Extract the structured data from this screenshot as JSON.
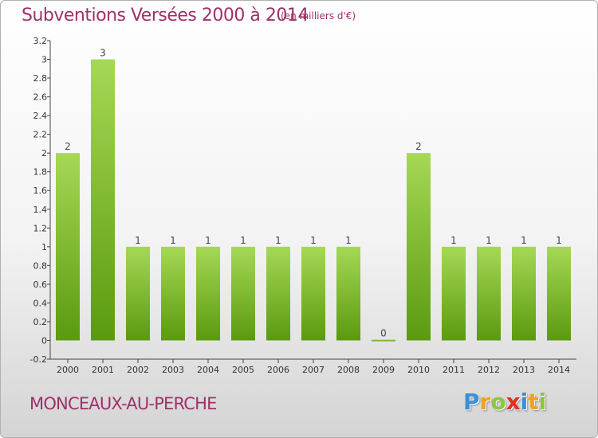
{
  "title": "Subventions Versées 2000 à 2014",
  "subtitle": "(en milliers d'€)",
  "place": "MONCEAUX-AU-PERCHE",
  "logo": {
    "letters": [
      "P",
      "r",
      "o",
      "x",
      "i",
      "t",
      "i"
    ],
    "colors": [
      "#3a8fd8",
      "#f0a020",
      "#8cc63f",
      "#e03020",
      "#3a8fd8",
      "#f0a020",
      "#8cc63f"
    ]
  },
  "chart_data": {
    "type": "bar",
    "categories": [
      "2000",
      "2001",
      "2002",
      "2003",
      "2004",
      "2005",
      "2006",
      "2007",
      "2008",
      "2009",
      "2010",
      "2011",
      "2012",
      "2013",
      "2014"
    ],
    "values": [
      2,
      3,
      1,
      1,
      1,
      1,
      1,
      1,
      1,
      0,
      2,
      1,
      1,
      1,
      1
    ],
    "data_labels": [
      "2",
      "3",
      "1",
      "1",
      "1",
      "1",
      "1",
      "1",
      "1",
      "0",
      "2",
      "1",
      "1",
      "1",
      "1"
    ],
    "ylim": [
      -0.2,
      3.2
    ],
    "yticks": [
      -0.2,
      0,
      0.2,
      0.4,
      0.6,
      0.8,
      1,
      1.2,
      1.4,
      1.6,
      1.8,
      2,
      2.2,
      2.4,
      2.6,
      2.8,
      3,
      3.2
    ],
    "ytick_labels": [
      "-0.2",
      "0",
      "0.2",
      "0.4",
      "0.6",
      "0.8",
      "1",
      "1.2",
      "1.4",
      "1.6",
      "1.8",
      "2",
      "2.2",
      "2.4",
      "2.6",
      "2.8",
      "3",
      "3.2"
    ],
    "grid": false,
    "bar_color_top": "#a6d855",
    "bar_color_bottom": "#5a9a10"
  }
}
